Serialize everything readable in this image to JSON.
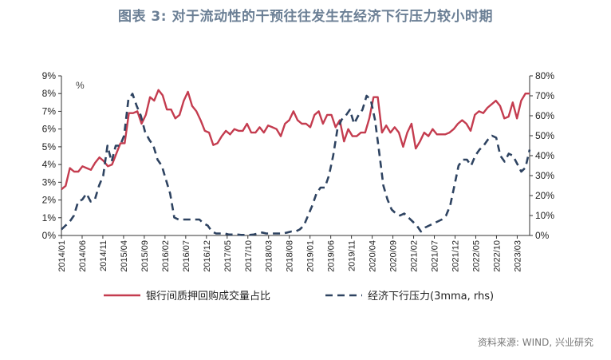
{
  "header": {
    "title": "图表 3:   对于流动性的干预往往发生在经济下行压力较小时期"
  },
  "footer": {
    "source": "资料来源: WIND, 兴业研究"
  },
  "colors": {
    "series1": "#c43c4f",
    "series2": "#2e4361",
    "axis": "#333333"
  },
  "chart_data": {
    "type": "line",
    "left_unit_label": "%",
    "yleft": {
      "min": 0,
      "max": 9,
      "ticks": [
        "0%",
        "1%",
        "2%",
        "3%",
        "4%",
        "5%",
        "6%",
        "7%",
        "8%",
        "9%"
      ]
    },
    "yright": {
      "min": 0,
      "max": 80,
      "ticks": [
        "0%",
        "10%",
        "20%",
        "30%",
        "40%",
        "50%",
        "60%",
        "70%",
        "80%"
      ]
    },
    "x_ticks": [
      "2014/01",
      "2014/06",
      "2014/11",
      "2015/04",
      "2015/09",
      "2016/02",
      "2016/07",
      "2016/12",
      "2017/05",
      "2017/10",
      "2018/03",
      "2018/08",
      "2019/01",
      "2019/06",
      "2019/11",
      "2020/04",
      "2020/09",
      "2021/02",
      "2021/07",
      "2021/12",
      "2022/05",
      "2022/10",
      "2023/03"
    ],
    "x_start": "2014/01",
    "x_end": "2023/06",
    "series": [
      {
        "name": "银行间质押回购成交量占比",
        "axis": "left",
        "style": "solid",
        "values": [
          2.6,
          2.8,
          3.8,
          3.6,
          3.6,
          3.9,
          3.8,
          3.7,
          4.1,
          4.4,
          4.2,
          3.9,
          4.0,
          4.6,
          5.2,
          5.2,
          6.9,
          6.9,
          7.0,
          6.3,
          6.8,
          7.8,
          7.6,
          8.2,
          7.9,
          7.1,
          7.1,
          6.6,
          6.8,
          7.6,
          8.1,
          7.3,
          7.0,
          6.5,
          5.9,
          5.8,
          5.1,
          5.2,
          5.6,
          5.9,
          5.7,
          6.0,
          5.9,
          5.9,
          6.3,
          5.8,
          5.8,
          6.1,
          5.8,
          6.2,
          6.1,
          6.0,
          5.6,
          6.3,
          6.5,
          7.0,
          6.5,
          6.3,
          6.3,
          6.1,
          6.8,
          7.0,
          6.3,
          6.8,
          6.8,
          6.1,
          6.5,
          5.3,
          6.0,
          5.6,
          5.6,
          5.8,
          5.8,
          6.6,
          7.8,
          7.8,
          5.8,
          6.2,
          5.8,
          6.1,
          5.8,
          5.0,
          5.8,
          6.3,
          4.9,
          5.3,
          5.8,
          5.6,
          6.0,
          5.7,
          5.7,
          5.7,
          5.8,
          6.0,
          6.3,
          6.5,
          6.3,
          5.9,
          6.8,
          7.0,
          6.9,
          7.2,
          7.4,
          7.6,
          7.3,
          6.6,
          6.7,
          7.5,
          6.6,
          7.6,
          8.0,
          8.0
        ]
      },
      {
        "name": "经济下行压力(3mma, rhs)",
        "axis": "right",
        "style": "dashed",
        "values": [
          3,
          5,
          7,
          10,
          17,
          18,
          21,
          17,
          18,
          25,
          30,
          45,
          37,
          45,
          45,
          50,
          68,
          71,
          65,
          60,
          52,
          48,
          45,
          38,
          35,
          28,
          21,
          9,
          8,
          8,
          8,
          8,
          8,
          8,
          6,
          5,
          2,
          1,
          1,
          1,
          0.5,
          0.5,
          0.5,
          0.3,
          0.3,
          0.3,
          0.5,
          1,
          1.5,
          1,
          1,
          1,
          1,
          1,
          1.5,
          2,
          2,
          3,
          5,
          10,
          15,
          21,
          24,
          24,
          30,
          40,
          53,
          58,
          60,
          63,
          56,
          60,
          63,
          70,
          68,
          58,
          42,
          25,
          18,
          13,
          11,
          10,
          11,
          9,
          7,
          5,
          2,
          4,
          5,
          6,
          7,
          8,
          10,
          15,
          25,
          35,
          38,
          38,
          35,
          40,
          43,
          45,
          48,
          50,
          49,
          40,
          37,
          41,
          40,
          36,
          32,
          34,
          43
        ]
      }
    ]
  }
}
